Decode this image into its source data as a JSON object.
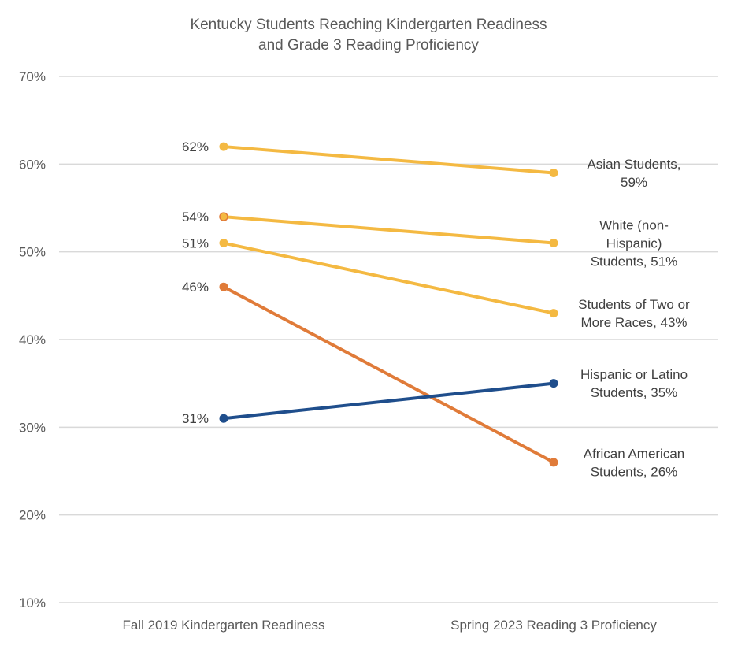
{
  "chart_data": {
    "type": "line",
    "title": [
      "Kentucky Students Reaching Kindergarten Readiness",
      "and Grade 3 Reading Proficiency"
    ],
    "categories": [
      "Fall 2019 Kindergarten Readiness",
      "Spring 2023 Reading 3 Proficiency"
    ],
    "ylim": [
      10,
      70
    ],
    "yticks": [
      10,
      20,
      30,
      40,
      50,
      60,
      70
    ],
    "ytick_labels": [
      "10%",
      "20%",
      "30%",
      "40%",
      "50%",
      "60%",
      "70%"
    ],
    "grid": true,
    "series": [
      {
        "name": "Asian Students",
        "values": [
          62,
          59
        ],
        "color": "#f4b942",
        "start_label": "62%",
        "end_label": [
          "Asian Students,",
          "59%"
        ]
      },
      {
        "name": "White (non-Hispanic) Students",
        "values": [
          54,
          51
        ],
        "color": "#f4b942",
        "marker_edge": "#e07b39",
        "start_label": "54%",
        "end_label": [
          "White (non-",
          "Hispanic)",
          "Students, 51%"
        ]
      },
      {
        "name": "Students of Two or More Races",
        "values": [
          51,
          43
        ],
        "color": "#f4b942",
        "start_label": "51%",
        "end_label": [
          "Students of Two or",
          "More Races, 43%"
        ]
      },
      {
        "name": "African American Students",
        "values": [
          46,
          26
        ],
        "color": "#e07b39",
        "start_label": "46%",
        "end_label": [
          "African American",
          "Students, 26%"
        ]
      },
      {
        "name": "Hispanic or Latino Students",
        "values": [
          31,
          35
        ],
        "color": "#1f4e8c",
        "start_label": "31%",
        "end_label": [
          "Hispanic or Latino",
          "Students, 35%"
        ]
      }
    ]
  }
}
